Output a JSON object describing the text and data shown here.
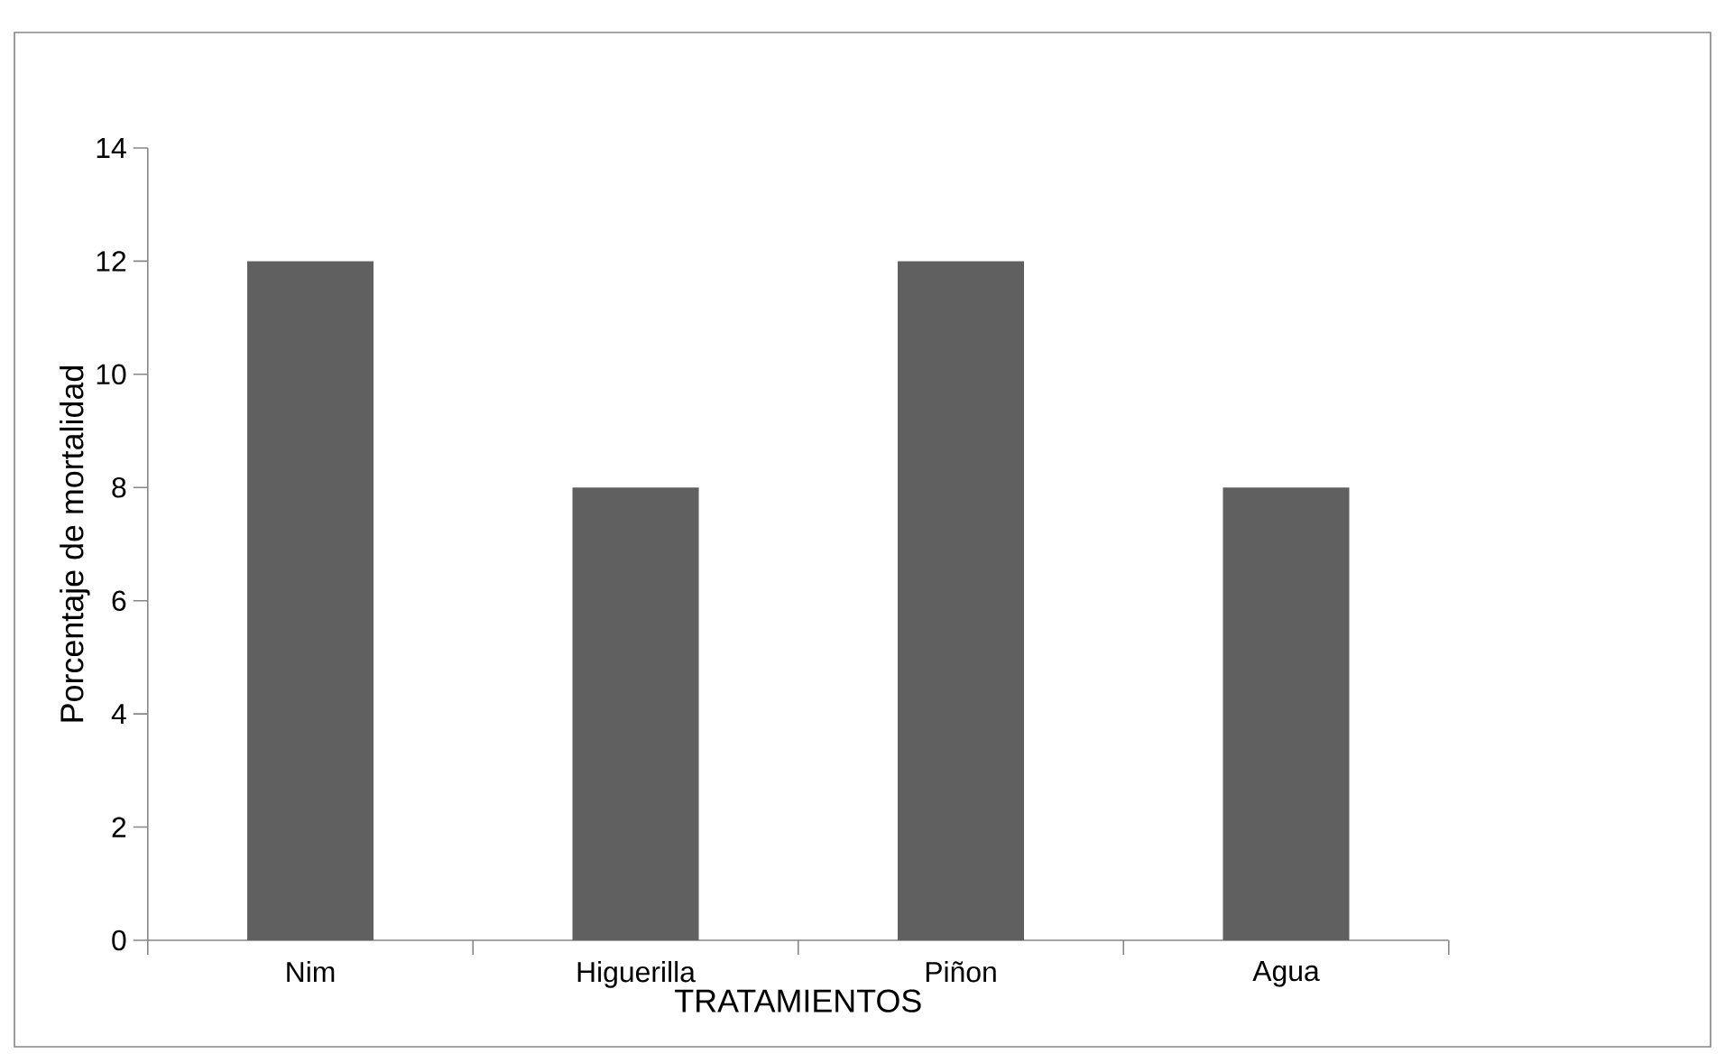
{
  "chart_data": {
    "type": "bar",
    "xlabel": "TRATAMIENTOS",
    "ylabel": "Porcentaje de mortalidad",
    "categories": [
      "Nim",
      "Higuerilla",
      "Piñon",
      "Agua"
    ],
    "values": [
      12,
      8,
      12,
      8
    ],
    "color": "#606060",
    "ylim": [
      0,
      14
    ],
    "yticks": [
      0,
      2,
      4,
      6,
      8,
      10,
      12,
      14
    ]
  }
}
